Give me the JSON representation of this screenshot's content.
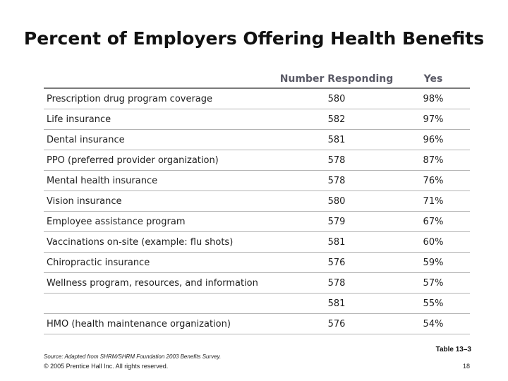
{
  "title": "Percent of Employers Offering Health Benefits",
  "table": {
    "headers": [
      "",
      "Number Responding",
      "Yes"
    ],
    "rows": [
      {
        "benefit": "Prescription drug program coverage",
        "number": "580",
        "yes": "98%"
      },
      {
        "benefit": "Life insurance",
        "number": "582",
        "yes": "97%"
      },
      {
        "benefit": "Dental insurance",
        "number": "581",
        "yes": "96%"
      },
      {
        "benefit": "PPO (preferred provider organization)",
        "number": "578",
        "yes": "87%"
      },
      {
        "benefit": "Mental health insurance",
        "number": "578",
        "yes": "76%"
      },
      {
        "benefit": "Vision insurance",
        "number": "580",
        "yes": "71%"
      },
      {
        "benefit": "Employee assistance program",
        "number": "579",
        "yes": "67%"
      },
      {
        "benefit": "Vaccinations on-site (example: flu shots)",
        "number": "581",
        "yes": "60%"
      },
      {
        "benefit": "Chiropractic insurance",
        "number": "576",
        "yes": "59%"
      },
      {
        "benefit": "Wellness program, resources, and information",
        "number": "578",
        "yes": "57%"
      },
      {
        "benefit": "",
        "number": "581",
        "yes": "55%"
      },
      {
        "benefit": "HMO (health maintenance organization)",
        "number": "576",
        "yes": "54%"
      }
    ]
  },
  "footer": {
    "source": "Source: Adapted from SHRM/SHRM Foundation 2003 Benefits Survey.",
    "table_ref": "Table 13–3",
    "copyright": "© 2005 Prentice Hall Inc. All rights reserved.",
    "page": "18"
  }
}
